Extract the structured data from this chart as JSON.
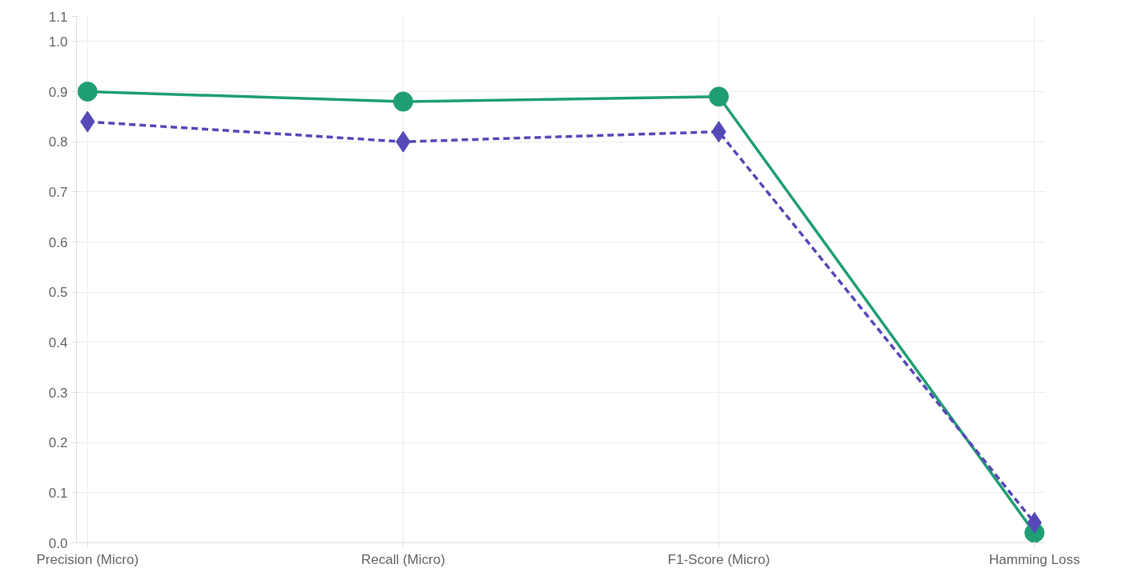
{
  "chart_data": {
    "type": "line",
    "categories": [
      "Precision (Micro)",
      "Recall (Micro)",
      "F1-Score (Micro)",
      "Hamming Loss"
    ],
    "series": [
      {
        "name": null,
        "color": "#1f9e74",
        "values": [
          0.9,
          0.88,
          0.89,
          0.02
        ],
        "marker": "circle",
        "line_style": "solid"
      },
      {
        "name": null,
        "color": "#5549b8",
        "values": [
          0.84,
          0.8,
          0.82,
          0.04
        ],
        "marker": "diamond",
        "line_style": "dashed"
      }
    ],
    "ylim": [
      0,
      1.05
    ],
    "yticks": [
      {
        "value": 0,
        "label": "0.0"
      },
      {
        "value": 0.1,
        "label": "0.1"
      },
      {
        "value": 0.2,
        "label": "0.2"
      },
      {
        "value": 0.3,
        "label": "0.3"
      },
      {
        "value": 0.4,
        "label": "0.4"
      },
      {
        "value": 0.5,
        "label": "0.5"
      },
      {
        "value": 0.6,
        "label": "0.6"
      },
      {
        "value": 0.7,
        "label": "0.7"
      },
      {
        "value": 0.8,
        "label": "0.8"
      },
      {
        "value": 0.9,
        "label": "0.9"
      },
      {
        "value": 1.0,
        "label": "1.0"
      },
      {
        "value": 1.05,
        "label": "1.1"
      }
    ],
    "grid": true
  }
}
